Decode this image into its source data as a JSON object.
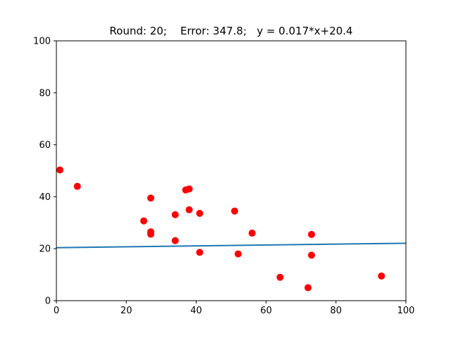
{
  "chart_data": {
    "type": "scatter",
    "title": "Round: 20;    Error: 347.8;   y = 0.017*x+20.4",
    "xlabel": "",
    "ylabel": "",
    "xlim": [
      0,
      100
    ],
    "ylim": [
      0,
      100
    ],
    "xticks": [
      0,
      20,
      40,
      60,
      80,
      100
    ],
    "yticks": [
      0,
      20,
      40,
      60,
      80,
      100
    ],
    "xtick_labels": [
      "0",
      "20",
      "40",
      "60",
      "80",
      "100"
    ],
    "ytick_labels": [
      "0",
      "20",
      "40",
      "60",
      "80",
      "100"
    ],
    "grid": false,
    "points": {
      "x": [
        1,
        6,
        25,
        27,
        27,
        27,
        34,
        34,
        37,
        38,
        38,
        41,
        41,
        51,
        52,
        56,
        64,
        72,
        73,
        73,
        93
      ],
      "y": [
        50.3,
        44,
        30.7,
        39.5,
        26.5,
        25.6,
        33.1,
        23.1,
        42.6,
        43,
        35,
        33.6,
        18.6,
        34.5,
        18,
        26,
        9,
        5,
        25.5,
        17.5,
        9.5
      ],
      "color": "#ff0000"
    },
    "fit_line": {
      "slope": 0.017,
      "intercept": 20.4,
      "color": "#1f77b4"
    }
  }
}
